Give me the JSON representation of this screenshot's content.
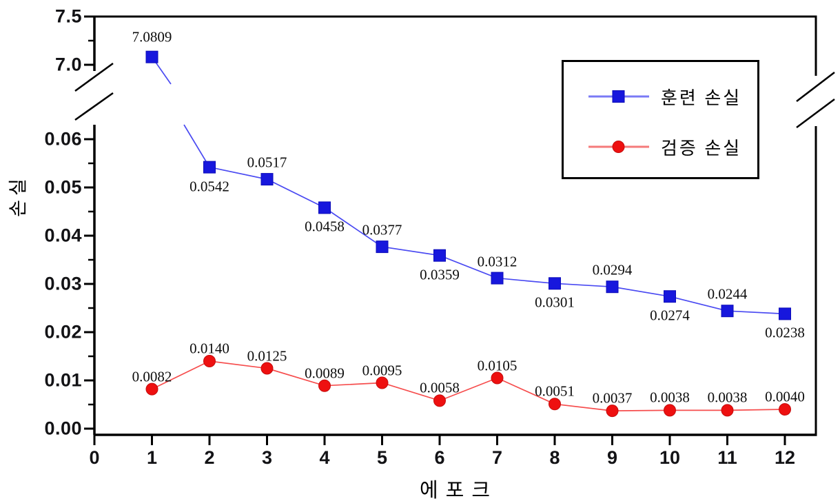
{
  "chart_data": {
    "type": "line",
    "title": "",
    "xlabel": "에포크",
    "ylabel": "손실",
    "x": [
      1,
      2,
      3,
      4,
      5,
      6,
      7,
      8,
      9,
      10,
      11,
      12
    ],
    "x_tick_labels": [
      "0",
      "1",
      "2",
      "3",
      "4",
      "5",
      "6",
      "7",
      "8",
      "9",
      "10",
      "11",
      "12"
    ],
    "y_tick_labels_lower": [
      "0.00",
      "0.01",
      "0.02",
      "0.03",
      "0.04",
      "0.05",
      "0.06"
    ],
    "y_tick_labels_upper": [
      "7.0",
      "7.5"
    ],
    "axis_break": true,
    "ylim_lower": [
      0.0,
      0.065
    ],
    "ylim_upper": [
      6.9,
      7.5
    ],
    "grid": false,
    "legend_position": "top-right",
    "series": [
      {
        "name": "훈련 손실",
        "marker": "square",
        "marker_color": "#1717dd",
        "marker_edge": "#0c0cb8",
        "line_color": "#4a4af2",
        "legend_line_color": "#7a7af5",
        "values": [
          7.0809,
          0.0542,
          0.0517,
          0.0458,
          0.0377,
          0.0359,
          0.0312,
          0.0301,
          0.0294,
          0.0274,
          0.0244,
          0.0238
        ],
        "point_labels": [
          "7.0809",
          "0.0542",
          "0.0517",
          "0.0458",
          "0.0377",
          "0.0359",
          "0.0312",
          "0.0301",
          "0.0294",
          "0.0274",
          "0.0244",
          "0.0238"
        ],
        "label_sides": [
          "above",
          "below",
          "above",
          "below",
          "above",
          "below",
          "above",
          "below",
          "above",
          "below",
          "above",
          "below"
        ]
      },
      {
        "name": "검증 손실",
        "marker": "circle",
        "marker_color": "#ee1010",
        "marker_edge": "#c40d0d",
        "line_color": "#f64d4d",
        "legend_line_color": "#f57a7a",
        "values": [
          0.0082,
          0.014,
          0.0125,
          0.0089,
          0.0095,
          0.0058,
          0.0105,
          0.0051,
          0.0037,
          0.0038,
          0.0038,
          0.004
        ],
        "point_labels": [
          "0.0082",
          "0.0140",
          "0.0125",
          "0.0089",
          "0.0095",
          "0.0058",
          "0.0105",
          "0.0051",
          "0.0037",
          "0.0038",
          "0.0038",
          "0.0040"
        ],
        "label_sides": [
          "above",
          "above",
          "above",
          "above",
          "above",
          "above",
          "above",
          "above",
          "above",
          "above",
          "above",
          "above"
        ]
      }
    ]
  },
  "colors": {
    "background": "#ffffff",
    "axis": "#000000",
    "tick_label": "#131316",
    "data_label": "#0d0d0d",
    "legend_border": "#000000"
  }
}
